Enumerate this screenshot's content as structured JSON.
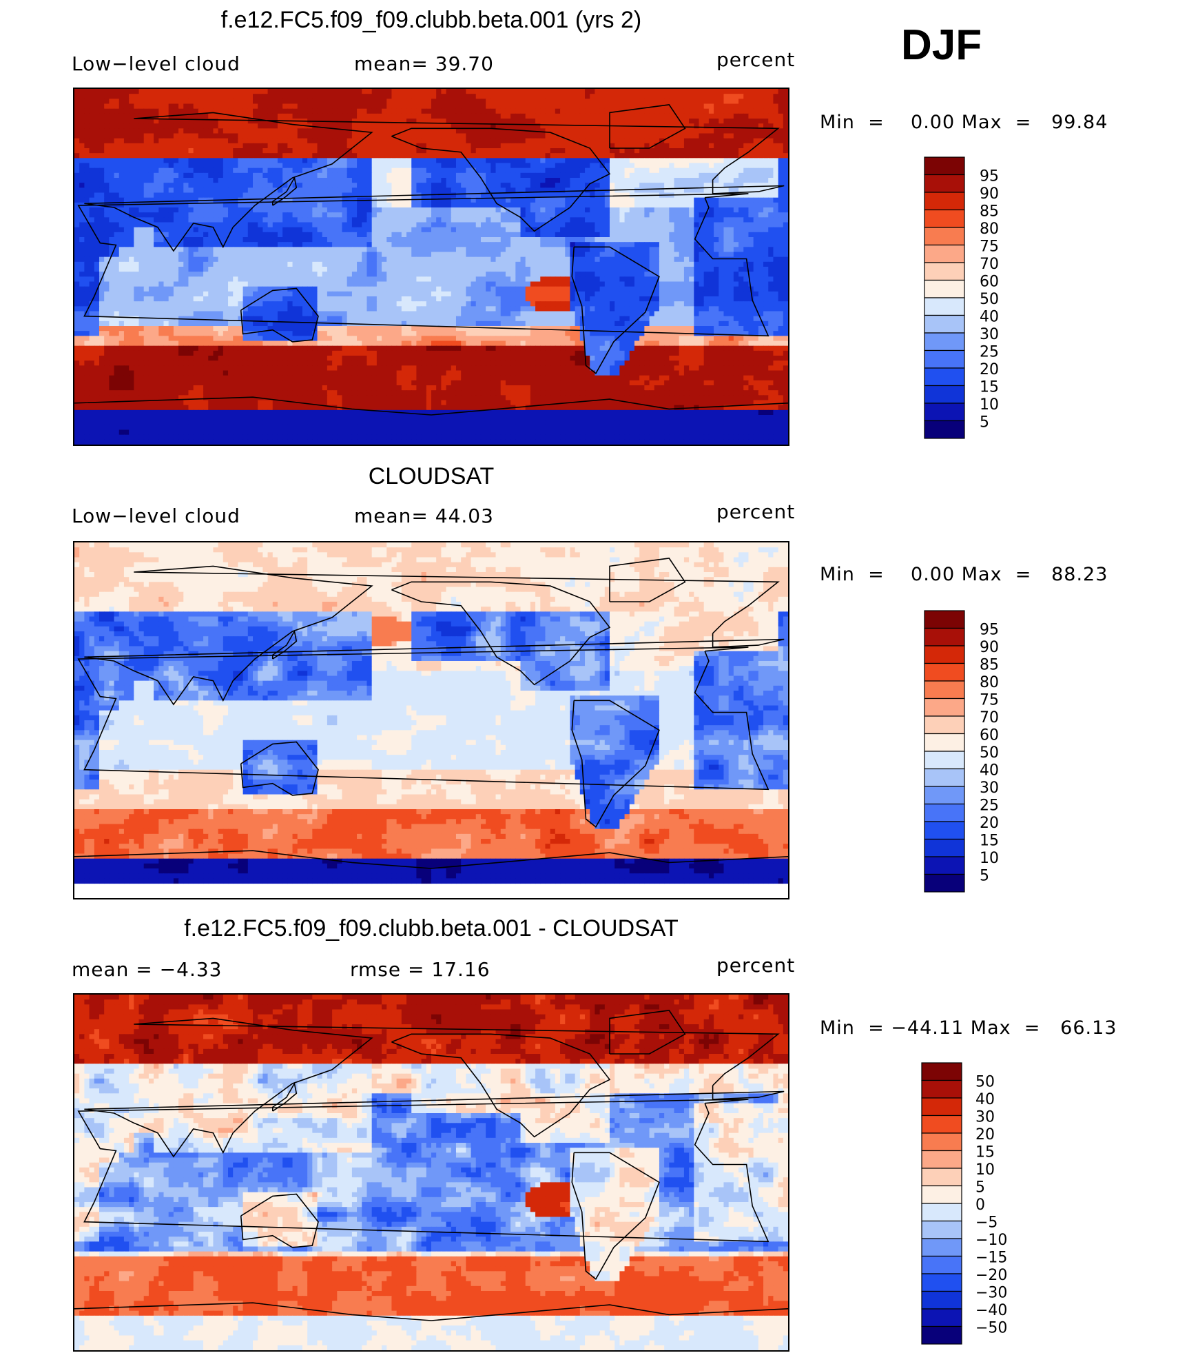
{
  "season": "DJF",
  "panels": [
    {
      "title": "f.e12.FC5.f09_f09.clubb.beta.001 (yrs 2)",
      "left_label": "Low−level cloud",
      "center_label": "mean=   39.70",
      "right_label": "percent",
      "minmax": "Min  =    0.00 Max  =   99.84",
      "kind": "model"
    },
    {
      "title": "CLOUDSAT",
      "left_label": "Low−level cloud",
      "center_label": "mean=   44.03",
      "right_label": "percent",
      "minmax": "Min  =    0.00 Max  =   88.23",
      "kind": "obs"
    },
    {
      "title": "f.e12.FC5.f09_f09.clubb.beta.001 - CLOUDSAT",
      "left_label": "mean  =   −4.33",
      "center_label": "rmse  =   17.16",
      "right_label": "percent",
      "minmax": "Min  = −44.11 Max  =   66.13",
      "kind": "diff"
    }
  ],
  "chart_data": [
    {
      "type": "heatmap",
      "title": "f.e12.FC5.f09_f09.clubb.beta.001 (yrs 2)",
      "variable": "Low−level cloud",
      "units": "percent",
      "mean": 39.7,
      "min": 0.0,
      "max": 99.84,
      "colorbar_levels": [
        5,
        10,
        15,
        20,
        25,
        30,
        40,
        50,
        60,
        70,
        75,
        80,
        85,
        90,
        95
      ],
      "colors": [
        "#08007a",
        "#0c14b4",
        "#1034d8",
        "#2050f0",
        "#4874f8",
        "#7098f8",
        "#a8c4f8",
        "#d8e8fc",
        "#fdf0e4",
        "#fdd0b8",
        "#fca888",
        "#f87c50",
        "#f04c20",
        "#d42808",
        "#a81008",
        "#7c0404"
      ]
    },
    {
      "type": "heatmap",
      "title": "CLOUDSAT",
      "variable": "Low−level cloud",
      "units": "percent",
      "mean": 44.03,
      "min": 0.0,
      "max": 88.23,
      "colorbar_levels": [
        5,
        10,
        15,
        20,
        25,
        30,
        40,
        50,
        60,
        70,
        75,
        80,
        85,
        90,
        95
      ],
      "colors": [
        "#08007a",
        "#0c14b4",
        "#1034d8",
        "#2050f0",
        "#4874f8",
        "#7098f8",
        "#a8c4f8",
        "#d8e8fc",
        "#fdf0e4",
        "#fdd0b8",
        "#fca888",
        "#f87c50",
        "#f04c20",
        "#d42808",
        "#a81008",
        "#7c0404"
      ]
    },
    {
      "type": "heatmap",
      "title": "f.e12.FC5.f09_f09.clubb.beta.001 - CLOUDSAT",
      "units": "percent",
      "mean": -4.33,
      "rmse": 17.16,
      "min": -44.11,
      "max": 66.13,
      "colorbar_levels": [
        -50,
        -40,
        -30,
        -20,
        -15,
        -10,
        -5,
        0,
        5,
        10,
        15,
        20,
        30,
        40,
        50
      ],
      "colorbar_labels": [
        "−50",
        "−40",
        "−30",
        "−20",
        "−15",
        "−10",
        "−5",
        "0",
        "5",
        "10",
        "15",
        "20",
        "30",
        "40",
        "50"
      ],
      "colors": [
        "#08007a",
        "#0c14b4",
        "#1034d8",
        "#2050f0",
        "#4874f8",
        "#7098f8",
        "#a8c4f8",
        "#d8e8fc",
        "#fdf0e4",
        "#fdd0b8",
        "#fca888",
        "#f87c50",
        "#f04c20",
        "#d42808",
        "#a81008",
        "#7c0404"
      ]
    }
  ]
}
